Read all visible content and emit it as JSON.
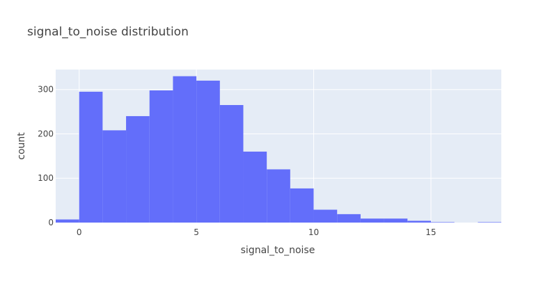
{
  "chart_data": {
    "type": "bar",
    "title": "signal_to_noise distribution",
    "xlabel": "signal_to_noise",
    "ylabel": "count",
    "xlim": [
      -1,
      18
    ],
    "ylim": [
      0,
      345
    ],
    "x_ticks": [
      0,
      5,
      10,
      15
    ],
    "y_ticks": [
      0,
      100,
      200,
      300
    ],
    "bin_width": 1,
    "bins": [
      -1,
      0,
      1,
      2,
      3,
      4,
      5,
      6,
      7,
      8,
      9,
      10,
      11,
      12,
      13,
      14,
      15,
      16,
      17
    ],
    "counts": [
      7,
      295,
      208,
      240,
      298,
      330,
      320,
      265,
      160,
      120,
      77,
      29,
      19,
      9,
      9,
      4,
      1,
      0,
      1
    ],
    "grid": true,
    "colors": {
      "bar": "#636efa",
      "plot_bg": "#e5ecf6",
      "grid": "#ffffff",
      "text": "#444444"
    }
  }
}
